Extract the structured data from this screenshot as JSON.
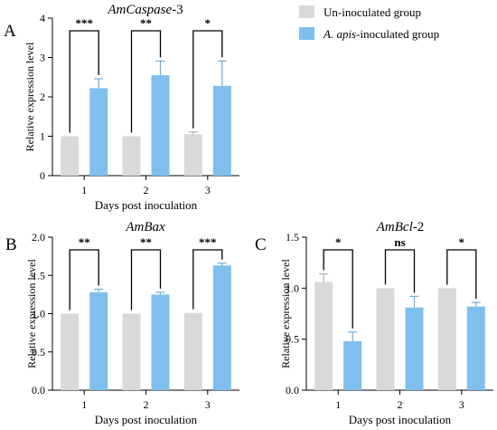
{
  "legend": {
    "items": [
      {
        "label_plain": "Un-inoculated group",
        "color": "#d9d9d9"
      },
      {
        "label_italic": "A. apis",
        "label_rest": "-inoculated group",
        "color": "#7fbfed"
      }
    ]
  },
  "chart_data": [
    {
      "panel": "A",
      "type": "bar",
      "title_italic": "AmCaspase",
      "title_rest": "-3",
      "xlabel": "Days post inoculation",
      "ylabel": "Relative expression level",
      "categories": [
        "1",
        "2",
        "3"
      ],
      "ylim": [
        0,
        4
      ],
      "yticks": [
        "0",
        "1",
        "2",
        "3",
        "4"
      ],
      "series": [
        {
          "name": "Un-inoculated group",
          "values": [
            1.0,
            1.0,
            1.05
          ],
          "errors": [
            0.0,
            0.0,
            0.06
          ],
          "color": "#d9d9d9"
        },
        {
          "name": "A. apis-inoculated group",
          "values": [
            2.22,
            2.55,
            2.28
          ],
          "errors": [
            0.24,
            0.36,
            0.63
          ],
          "color": "#7fbfed"
        }
      ],
      "significance": [
        "***",
        "**",
        "*"
      ]
    },
    {
      "panel": "B",
      "type": "bar",
      "title_italic": "AmBax",
      "title_rest": "",
      "xlabel": "Days post inoculation",
      "ylabel": "Relative expression level",
      "categories": [
        "1",
        "2",
        "3"
      ],
      "ylim": [
        0,
        2.0
      ],
      "yticks": [
        "0.0",
        "0.5",
        "1.0",
        "1.5",
        "2.0"
      ],
      "series": [
        {
          "name": "Un-inoculated group",
          "values": [
            1.0,
            1.0,
            1.01
          ],
          "errors": [
            0.0,
            0.0,
            0.0
          ],
          "color": "#d9d9d9"
        },
        {
          "name": "A. apis-inoculated group",
          "values": [
            1.28,
            1.25,
            1.63
          ],
          "errors": [
            0.04,
            0.03,
            0.03
          ],
          "color": "#7fbfed"
        }
      ],
      "significance": [
        "**",
        "**",
        "***"
      ]
    },
    {
      "panel": "C",
      "type": "bar",
      "title_italic": "AmBcl",
      "title_rest": "-2",
      "xlabel": "Days post inoculation",
      "ylabel": "Relative expression level",
      "categories": [
        "1",
        "2",
        "3"
      ],
      "ylim": [
        0,
        1.5
      ],
      "yticks": [
        "0.0",
        "0.5",
        "1.0",
        "1.5"
      ],
      "series": [
        {
          "name": "Un-inoculated group",
          "values": [
            1.06,
            1.0,
            1.0
          ],
          "errors": [
            0.08,
            0.0,
            0.0
          ],
          "color": "#d9d9d9"
        },
        {
          "name": "A. apis-inoculated group",
          "values": [
            0.48,
            0.81,
            0.82
          ],
          "errors": [
            0.09,
            0.11,
            0.04
          ],
          "color": "#7fbfed"
        }
      ],
      "significance": [
        "*",
        "ns",
        "*"
      ]
    }
  ]
}
